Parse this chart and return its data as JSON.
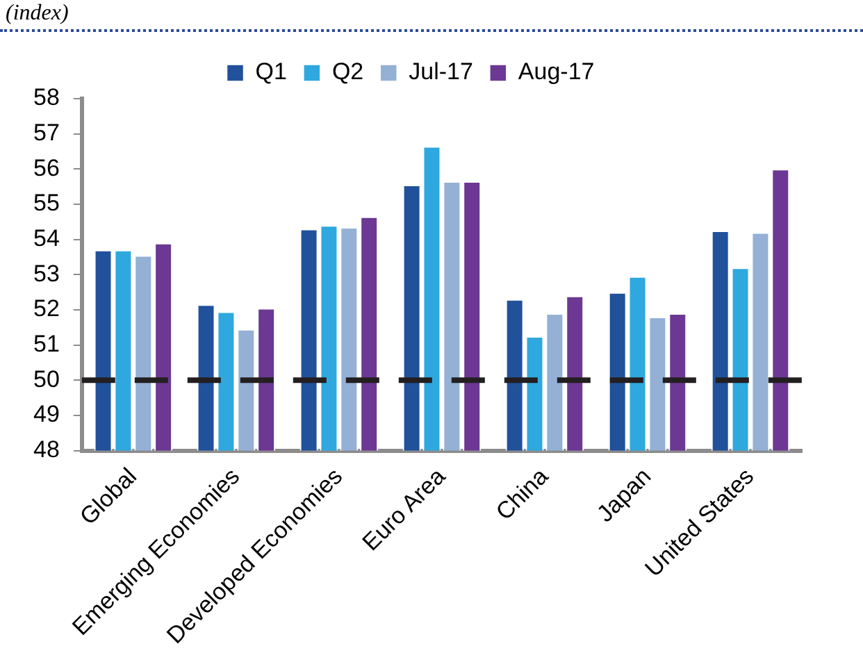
{
  "chart_data": {
    "type": "bar",
    "annotations": [
      "(index)"
    ],
    "categories": [
      "Global",
      "Emerging Economies",
      "Developed Economies",
      "Euro Area",
      "China",
      "Japan",
      "United States"
    ],
    "series": [
      {
        "name": "Q1",
        "color": "#21519b",
        "values": [
          53.7,
          52.15,
          54.3,
          55.55,
          52.3,
          52.5,
          54.25
        ]
      },
      {
        "name": "Q2",
        "color": "#2ea8df",
        "values": [
          53.7,
          51.95,
          54.4,
          56.65,
          51.25,
          52.95,
          53.2
        ]
      },
      {
        "name": "Jul-17",
        "color": "#94b0d5",
        "values": [
          53.55,
          51.45,
          54.35,
          55.65,
          51.9,
          51.8,
          54.2
        ]
      },
      {
        "name": "Aug-17",
        "color": "#6c3893",
        "values": [
          53.9,
          52.05,
          54.65,
          55.65,
          52.4,
          51.9,
          56.0
        ]
      }
    ],
    "ylim": [
      48,
      58
    ],
    "yticks": [
      48,
      49,
      50,
      51,
      52,
      53,
      54,
      55,
      56,
      57,
      58
    ],
    "grid": false,
    "legend": "top",
    "ref_lines": [
      {
        "axis": "y",
        "value": 50,
        "color": "#231f20",
        "line_style": "dashed"
      }
    ]
  }
}
